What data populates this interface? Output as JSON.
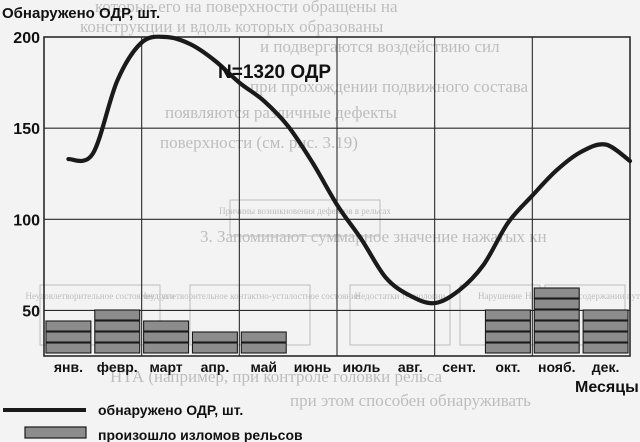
{
  "chart_data": {
    "type": "line+bar",
    "ylabel": "Обнаружено ОДР, шт.",
    "xlabel": "Месяцы",
    "annotation": "N=1320 ОДР",
    "categories": [
      "янв.",
      "февр.",
      "март",
      "апр.",
      "май",
      "июнь",
      "июль",
      "авг.",
      "сент.",
      "окт.",
      "нояб.",
      "дек."
    ],
    "y_ticks": [
      "200",
      "150",
      "100",
      "50"
    ],
    "ylim": [
      25,
      200
    ],
    "grid": true,
    "series": [
      {
        "name": "обнаружено ОДР, шт.",
        "type": "line",
        "x": [
          0,
          0.5,
          1,
          1.5,
          2,
          2.5,
          3,
          3.5,
          4,
          4.5,
          5,
          5.5,
          6,
          6.5,
          7,
          7.5,
          8,
          8.5,
          9,
          9.5,
          10,
          10.5,
          11,
          11.5
        ],
        "values": [
          133,
          136,
          176,
          197,
          200,
          196,
          187,
          175,
          165,
          151,
          131,
          108,
          89,
          68,
          58,
          54,
          61,
          75,
          98,
          113,
          127,
          137,
          141,
          132
        ]
      },
      {
        "name": "произошло изломов рельсов",
        "type": "stacked-blocks",
        "values": [
          3,
          4,
          3,
          2,
          2,
          0,
          0,
          0,
          0,
          4,
          6,
          4
        ]
      }
    ],
    "legend_position": "bottom-left"
  },
  "background_text": {
    "lines": [
      "которые его на поверхности обращены на",
      "конструкции и вдоль которых образованы",
      "и подвергаются воздействию сил",
      "при прохождении подвижного состава",
      "появляются различные дефекты",
      "поверхности (см. рис. 3.19)",
      "3. Запоминают суммарное значение нажатых кн",
      "НТА (например, при контроле головки рельса",
      "при этом способен обнаруживать"
    ],
    "boxes": [
      "Причины возникновения дефектов в рельсах",
      "Неудовлетворительное состояние пути",
      "Неудовлетворительное контактно-усталостное состояние",
      "Недостатки технологии",
      "Нарушение",
      "Недостатки в содержании пути"
    ]
  },
  "colors": {
    "line": "#1a1a1a",
    "block_fill": "#8c8c8c",
    "block_stroke": "#1a1a1a",
    "grid": "#2a2a2a",
    "background": "#f3f3f3",
    "ghost_text": "#bdbdbd"
  }
}
